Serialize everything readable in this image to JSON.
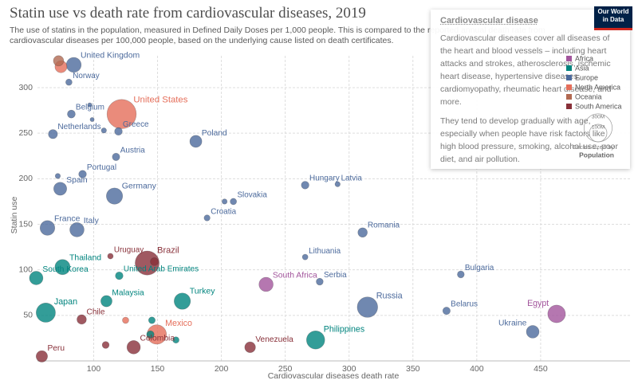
{
  "logo": [
    "Our World",
    "in Data"
  ],
  "popup": {
    "title": "Cardiovascular disease",
    "paragraphs": [
      "Cardiovascular diseases cover all diseases of the heart and blood vessels – including heart attacks and strokes, atherosclerosis, ischemic heart disease, hypertensive diseases, cardiomyopathy, rheumatic heart disease, and more.",
      "They tend to develop gradually with age, especially when people have risk factors like high blood pressure, smoking, alcohol use, poor diet, and air pollution."
    ]
  },
  "chart_data": {
    "type": "scatter",
    "title": "Statin use vs death rate from cardiovascular diseases, 2019",
    "subtitle": "The use of statins in the population, measured in Defined Daily Doses per 1,000 people. This is compared to the reported annual death rate from cardiovascular diseases per 100,000 people, based on the underlying cause listed on death certificates.",
    "xlabel": "Cardiovascular diseases death rate",
    "ylabel": "Statin use",
    "xlim": [
      56,
      520
    ],
    "ylim": [
      0,
      335
    ],
    "xticks": [
      100,
      150,
      200,
      250,
      300,
      350,
      400,
      450
    ],
    "yticks": [
      50,
      100,
      150,
      200,
      250,
      300
    ],
    "grid": true,
    "size_legend": {
      "sizes": [
        {
          "value": 300,
          "label": "300M"
        },
        {
          "value": 100,
          "label": "100M"
        }
      ],
      "title": "Circles sized by",
      "variable": "Population"
    },
    "series": [
      {
        "name": "Africa",
        "color": "#a2559c",
        "names": [
          "South Africa",
          "Egypt"
        ],
        "x": [
          235,
          462.5
        ],
        "values": [
          84,
          51.6
        ],
        "sizes": [
          59,
          102
        ]
      },
      {
        "name": "Asia",
        "color": "#00847e",
        "names": [
          "Thailand",
          "South Korea",
          "United Arab Emirates",
          "Malaysia",
          "Turkey",
          "Japan",
          null,
          null,
          null,
          "Philippines"
        ],
        "x": [
          75.6,
          55,
          120,
          110,
          169.4,
          62.5,
          145.6,
          144.4,
          164.4,
          273.8
        ],
        "values": [
          103,
          91,
          93.5,
          65.6,
          65.6,
          53,
          44.6,
          29,
          23,
          23
        ],
        "sizes": [
          70,
          52,
          10,
          32,
          84,
          126,
          6,
          9,
          5,
          110
        ]
      },
      {
        "name": "Europe",
        "color": "#4c6a9c",
        "names": [
          "United Kingdom",
          "Norway",
          "Belgium",
          null,
          null,
          "Netherlands",
          "Greece",
          null,
          "Poland",
          "Austria",
          "Portugal",
          null,
          "Spain",
          "Germany",
          "Hungary",
          "Latvia",
          "Slovakia",
          null,
          "Croatia",
          "France",
          "Italy",
          "Romania",
          "Lithuania",
          "Serbia",
          "Bulgaria",
          "Belarus",
          "Russia",
          "Ukraine"
        ],
        "x": [
          84.4,
          80.6,
          82.5,
          96.9,
          98.8,
          68.1,
          119.4,
          108,
          180,
          117.5,
          91.3,
          71.9,
          73.8,
          116.3,
          265.6,
          291,
          209.4,
          202.5,
          188.8,
          63.8,
          86.9,
          310.6,
          265.6,
          277,
          387.5,
          376.3,
          314.4,
          443.8
        ],
        "values": [
          325,
          306,
          271,
          281,
          265,
          249,
          252,
          253,
          241,
          224,
          205,
          203,
          189,
          181,
          193,
          194,
          175,
          175,
          157,
          146,
          144,
          141,
          114,
          87,
          95,
          55,
          59,
          32
        ],
        "sizes": [
          67,
          5,
          11,
          0.6,
          0.5,
          17,
          10,
          2,
          38,
          9,
          10,
          2,
          47,
          83,
          10,
          2,
          5,
          2,
          4,
          65,
          60,
          19,
          3,
          7,
          7,
          9,
          145,
          44
        ]
      },
      {
        "name": "North America",
        "color": "#e56e5a",
        "names": [
          "United States",
          "Mexico",
          null,
          null
        ],
        "x": [
          121.9,
          149.4,
          74.4,
          125
        ],
        "values": [
          271,
          29,
          323,
          44.6
        ],
        "sizes": [
          331,
          128,
          38,
          5
        ]
      },
      {
        "name": "Oceania",
        "color": "#b16951",
        "names": [
          null
        ],
        "x": [
          72.5
        ],
        "values": [
          329.5
        ],
        "sizes": [
          25
        ]
      },
      {
        "name": "South America",
        "color": "#883039",
        "names": [
          "Brazil",
          null,
          "Uruguay",
          "Chile",
          "Colombia",
          "Venezuela",
          "Peru",
          null
        ],
        "x": [
          141.9,
          147.5,
          113.1,
          90.6,
          131.3,
          222.5,
          59.4,
          109.4
        ],
        "values": [
          107.5,
          109,
          115,
          45.5,
          15,
          15,
          5,
          17.5
        ],
        "sizes": [
          212,
          11,
          3,
          19,
          51,
          28,
          33,
          7
        ]
      }
    ]
  }
}
